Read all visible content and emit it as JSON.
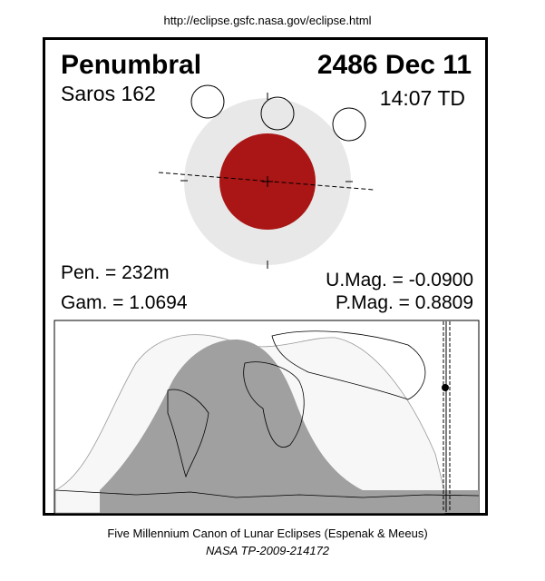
{
  "header": {
    "url": "http://eclipse.gsfc.nasa.gov/eclipse.html"
  },
  "panel": {
    "eclipse_type": "Penumbral",
    "date": "2486 Dec 11",
    "saros": "Saros 162",
    "time": "14:07 TD",
    "pen": "Pen. = 232m",
    "gam": "Gam. = 1.0694",
    "umag": "U.Mag. = -0.0900",
    "pmag": "P.Mag. = 0.8809"
  },
  "footer": {
    "line1": "Five Millennium Canon of Lunar Eclipses (Espenak & Meeus)",
    "line2": "NASA TP-2009-214172"
  }
}
